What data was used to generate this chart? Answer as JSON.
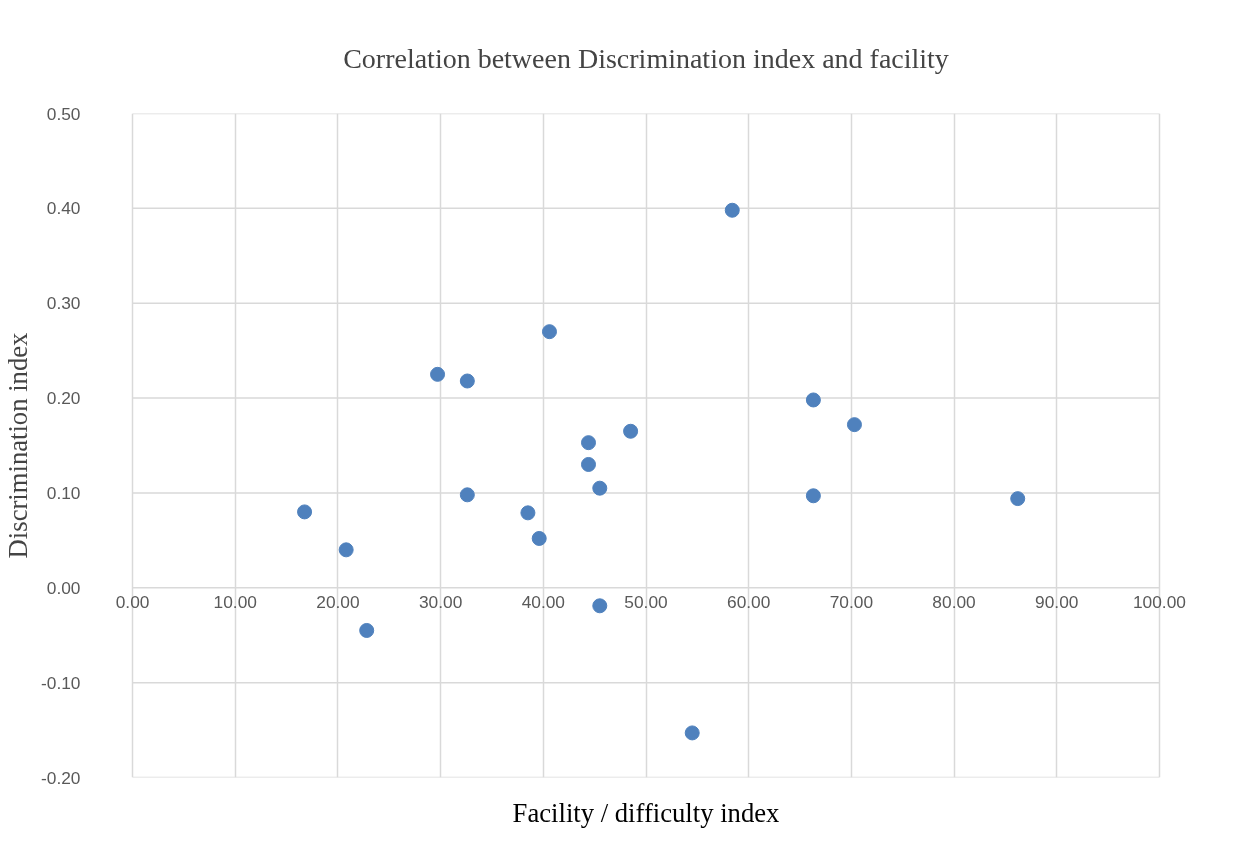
{
  "chart_data": {
    "type": "scatter",
    "title": "Correlation between Discrimination index and facility",
    "xlabel": "Facility / difficulty index",
    "ylabel": "Discrimination index",
    "x": [
      16.75,
      20.8,
      22.8,
      29.7,
      32.6,
      32.6,
      38.5,
      39.6,
      40.6,
      44.4,
      44.4,
      45.5,
      45.5,
      48.5,
      54.5,
      58.4,
      66.3,
      66.3,
      70.3,
      86.2
    ],
    "series": [
      {
        "color": "#4f81bd",
        "values": [
          0.08,
          0.04,
          -0.045,
          0.225,
          0.218,
          0.098,
          0.079,
          0.052,
          0.27,
          0.153,
          0.13,
          0.105,
          -0.019,
          0.165,
          -0.153,
          0.398,
          0.198,
          0.097,
          0.172,
          0.094
        ]
      }
    ],
    "xlim": [
      0,
      100
    ],
    "ylim": [
      -0.2,
      0.5
    ],
    "xticks": [
      {
        "value": 0,
        "label": "0.00"
      },
      {
        "value": 10,
        "label": "10.00"
      },
      {
        "value": 20,
        "label": "20.00"
      },
      {
        "value": 30,
        "label": "30.00"
      },
      {
        "value": 40,
        "label": "40.00"
      },
      {
        "value": 50,
        "label": "50.00"
      },
      {
        "value": 60,
        "label": "60.00"
      },
      {
        "value": 70,
        "label": "70.00"
      },
      {
        "value": 80,
        "label": "80.00"
      },
      {
        "value": 90,
        "label": "90.00"
      },
      {
        "value": 100,
        "label": "100.00"
      }
    ],
    "yticks": [
      {
        "value": -0.2,
        "label": "-0.20"
      },
      {
        "value": -0.1,
        "label": "-0.10"
      },
      {
        "value": 0,
        "label": "0.00"
      },
      {
        "value": 0.1,
        "label": "0.10"
      },
      {
        "value": 0.2,
        "label": "0.20"
      },
      {
        "value": 0.3,
        "label": "0.30"
      },
      {
        "value": 0.4,
        "label": "0.40"
      },
      {
        "value": 0.5,
        "label": "0.50"
      }
    ],
    "grid": true,
    "marker": "circle"
  }
}
